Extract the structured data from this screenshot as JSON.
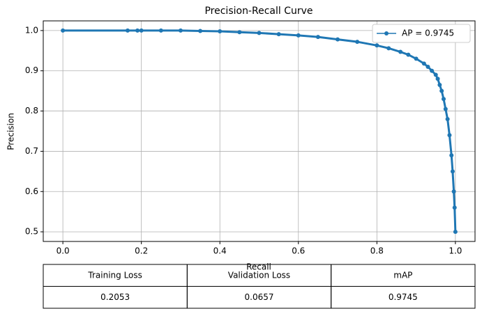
{
  "chart_data": {
    "type": "line",
    "title": "Precision-Recall Curve",
    "xlabel": "Recall",
    "ylabel": "Precision",
    "x": [
      0.0,
      0.165,
      0.19,
      0.2,
      0.25,
      0.3,
      0.35,
      0.4,
      0.45,
      0.5,
      0.55,
      0.6,
      0.65,
      0.7,
      0.75,
      0.8,
      0.83,
      0.86,
      0.88,
      0.9,
      0.92,
      0.93,
      0.94,
      0.95,
      0.955,
      0.96,
      0.965,
      0.97,
      0.975,
      0.98,
      0.985,
      0.99,
      0.993,
      0.996,
      0.998,
      1.0
    ],
    "series": [
      {
        "name": "AP = 0.9745",
        "color": "#1f77b4",
        "values": [
          1.0,
          1.0,
          1.0,
          1.0,
          1.0,
          1.0,
          0.999,
          0.998,
          0.996,
          0.994,
          0.991,
          0.988,
          0.984,
          0.978,
          0.972,
          0.963,
          0.956,
          0.947,
          0.94,
          0.93,
          0.918,
          0.91,
          0.9,
          0.89,
          0.88,
          0.865,
          0.85,
          0.83,
          0.805,
          0.78,
          0.74,
          0.69,
          0.65,
          0.6,
          0.56,
          0.5
        ]
      }
    ],
    "xlim": [
      -0.05,
      1.05
    ],
    "ylim": [
      0.476,
      1.024
    ],
    "xticks": [
      {
        "value": 0.0,
        "label": "0.0"
      },
      0.2,
      0.4,
      0.6,
      0.8,
      {
        "value": 1.0,
        "label": "1.0"
      }
    ],
    "yticks": [
      0.5,
      0.6,
      0.7,
      0.8,
      0.9,
      {
        "value": 1.0,
        "label": "1.0"
      }
    ],
    "grid": true,
    "legend": "upper right"
  },
  "table": {
    "header": [
      "Training Loss",
      "Validation Loss",
      "mAP"
    ],
    "rows": [
      [
        "0.2053",
        "0.0657",
        "0.9745"
      ]
    ]
  }
}
